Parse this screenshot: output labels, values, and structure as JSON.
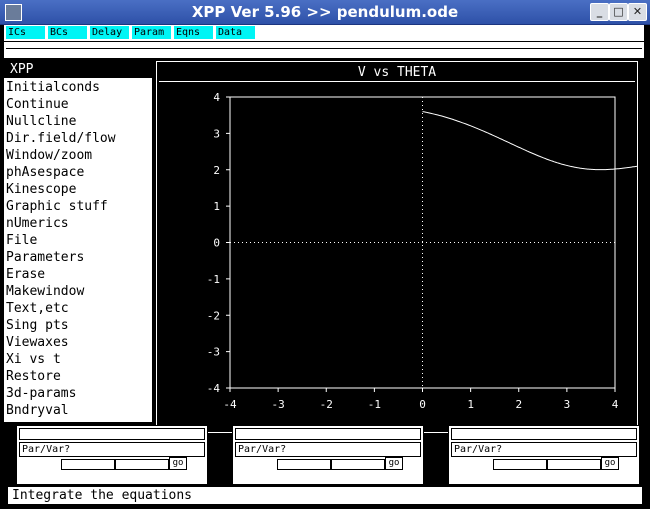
{
  "window": {
    "title": "XPP Ver 5.96 >> pendulum.ode"
  },
  "toolbar": {
    "items": [
      "ICs",
      "BCs",
      "Delay",
      "Param",
      "Eqns",
      "Data"
    ]
  },
  "menu": {
    "header": "XPP",
    "items": [
      "Initialconds",
      "Continue",
      "Nullcline",
      "Dir.field/flow",
      "Window/zoom",
      "phAsespace",
      "Kinescope",
      "Graphic stuff",
      "nUmerics",
      "File",
      "Parameters",
      "Erase",
      "Makewindow",
      "Text,etc",
      "Sing pts",
      "Viewaxes",
      "Xi vs t",
      "Restore",
      "3d-params",
      "Bndryval"
    ]
  },
  "graph": {
    "title": "V vs THETA"
  },
  "chart_data": {
    "type": "line",
    "title": "V vs THETA",
    "xlim": [
      -4,
      4
    ],
    "ylim": [
      -4,
      4
    ],
    "x_ticks": [
      "-4",
      "-3",
      "-2",
      "-1",
      "0",
      "1",
      "2",
      "3",
      "4"
    ],
    "y_ticks": [
      "4",
      "3",
      "2",
      "1",
      "0",
      "-1",
      "-2",
      "-3",
      "-4"
    ],
    "series": [
      {
        "start": [
          0,
          3.6
        ],
        "decay": 0.26
      }
    ],
    "colors": {
      "fg": "#ffffff",
      "bg": "#000000"
    }
  },
  "sliders": [
    {
      "label": "Par/Var?",
      "go": "go"
    },
    {
      "label": "Par/Var?",
      "go": "go"
    },
    {
      "label": "Par/Var?",
      "go": "go"
    }
  ],
  "status": {
    "text": "Integrate the equations"
  },
  "window_buttons": {
    "min": "_",
    "max": "□",
    "close": "✕"
  }
}
